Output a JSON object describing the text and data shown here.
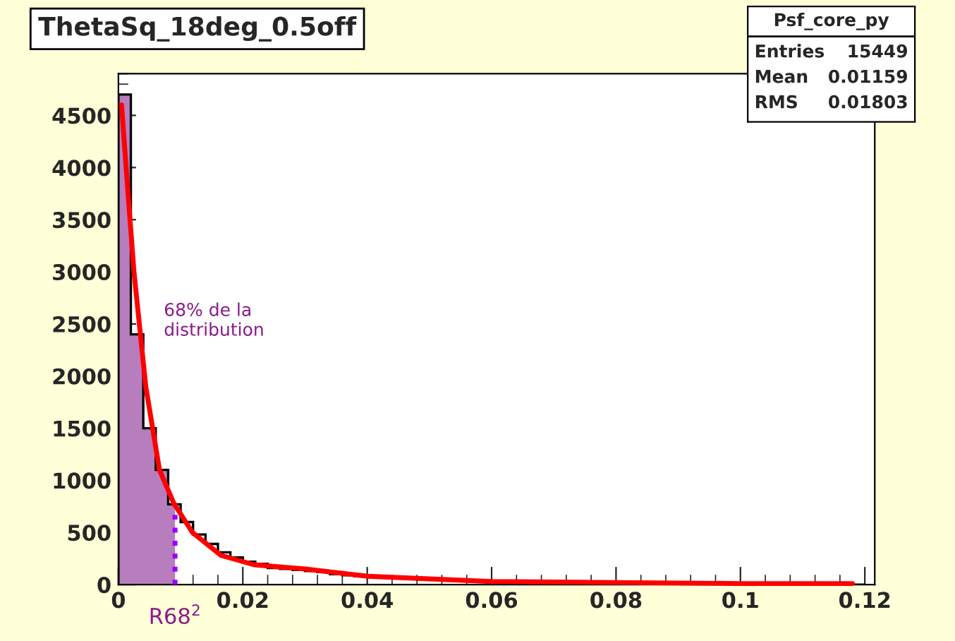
{
  "chart_data": {
    "type": "histogram",
    "title": "ThetaSq_18deg_0.5off",
    "bins": [
      0,
      0.002,
      0.004,
      0.006,
      0.008,
      0.01,
      0.012,
      0.014,
      0.016,
      0.018,
      0.02,
      0.022,
      0.024,
      0.026,
      0.028,
      0.03,
      0.032,
      0.034,
      0.036,
      0.038,
      0.04,
      0.042,
      0.044,
      0.046,
      0.048,
      0.05,
      0.052,
      0.054,
      0.056,
      0.058,
      0.06,
      0.062,
      0.064,
      0.066,
      0.068,
      0.07,
      0.072,
      0.074,
      0.076,
      0.078,
      0.08,
      0.082,
      0.084,
      0.086,
      0.088,
      0.09,
      0.092,
      0.094,
      0.096,
      0.098,
      0.1,
      0.102,
      0.104,
      0.106,
      0.108,
      0.11,
      0.112,
      0.114,
      0.116,
      0.118,
      0.12
    ],
    "series": [
      {
        "type": "area",
        "color": "#b87dbd",
        "x": [
          0,
          0.002,
          0.002,
          0.004,
          0.004,
          0.006,
          0.006,
          0.008,
          0.008,
          0.0091
        ],
        "values": [
          4700,
          4700,
          2400,
          2400,
          1500,
          1500,
          1100,
          1100,
          770,
          770
        ]
      },
      {
        "type": "histogram",
        "color": "#000000",
        "values": [
          4700,
          2400,
          1500,
          1100,
          770,
          600,
          480,
          390,
          310,
          260,
          220,
          200,
          160,
          150,
          140,
          130,
          120,
          100,
          90,
          80,
          80,
          70,
          60,
          60,
          50,
          50,
          40,
          40,
          40,
          30,
          30,
          30,
          30,
          20,
          20,
          20,
          20,
          20,
          20,
          20,
          20,
          10,
          10,
          10,
          10,
          10,
          10,
          10,
          10,
          10,
          10,
          10,
          10,
          10,
          10,
          10,
          0,
          0,
          0,
          0
        ]
      },
      {
        "type": "line",
        "color": "#ff0000",
        "x": [
          0.0005,
          0.00136,
          0.0025,
          0.0044,
          0.0066,
          0.0089,
          0.0119,
          0.0165,
          0.0218,
          0.03,
          0.04,
          0.06,
          0.08,
          0.1,
          0.118
        ],
        "values": [
          4600,
          3900,
          3000,
          1900,
          1100,
          780,
          500,
          280,
          190,
          150,
          80,
          30,
          20,
          10,
          10
        ]
      }
    ],
    "xlim": [
      0,
      0.1216
    ],
    "ylim": [
      0,
      4900
    ],
    "xticks": [
      {
        "value": 0,
        "label": "0"
      },
      0.02,
      0.04,
      0.06,
      0.08,
      {
        "value": 0.1,
        "label": "0.1"
      },
      0.12
    ],
    "yticks": [
      0,
      500,
      1000,
      1500,
      2000,
      2500,
      3000,
      3500,
      4000,
      4500
    ],
    "ref_lines": [
      {
        "axis": "x",
        "value": 0.0091,
        "label": "R68$^{2}$",
        "color": "#9900ff",
        "line_style": "dotted"
      }
    ],
    "annotations": [
      "68% de la\ndistribution",
      "Psf_core_py",
      "Entries",
      "15449",
      "Mean",
      "0.01159",
      "RMS",
      "0.01803"
    ],
    "grid": false
  }
}
